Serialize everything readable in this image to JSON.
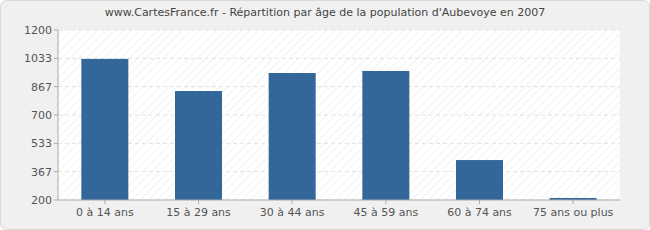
{
  "chart_data": {
    "type": "bar",
    "title": "www.CartesFrance.fr - Répartition par âge de la population d'Aubevoye en 2007",
    "categories": [
      "0 à 14 ans",
      "15 à 29 ans",
      "30 à 44 ans",
      "45 à 59 ans",
      "60 à 74 ans",
      "75 ans ou plus"
    ],
    "values": [
      1030,
      841,
      947,
      959,
      435,
      212
    ],
    "color": "#336699",
    "ylim": [
      200,
      1200
    ],
    "yticks": [
      200,
      367,
      533,
      700,
      867,
      1033,
      1200
    ],
    "grid": true
  }
}
